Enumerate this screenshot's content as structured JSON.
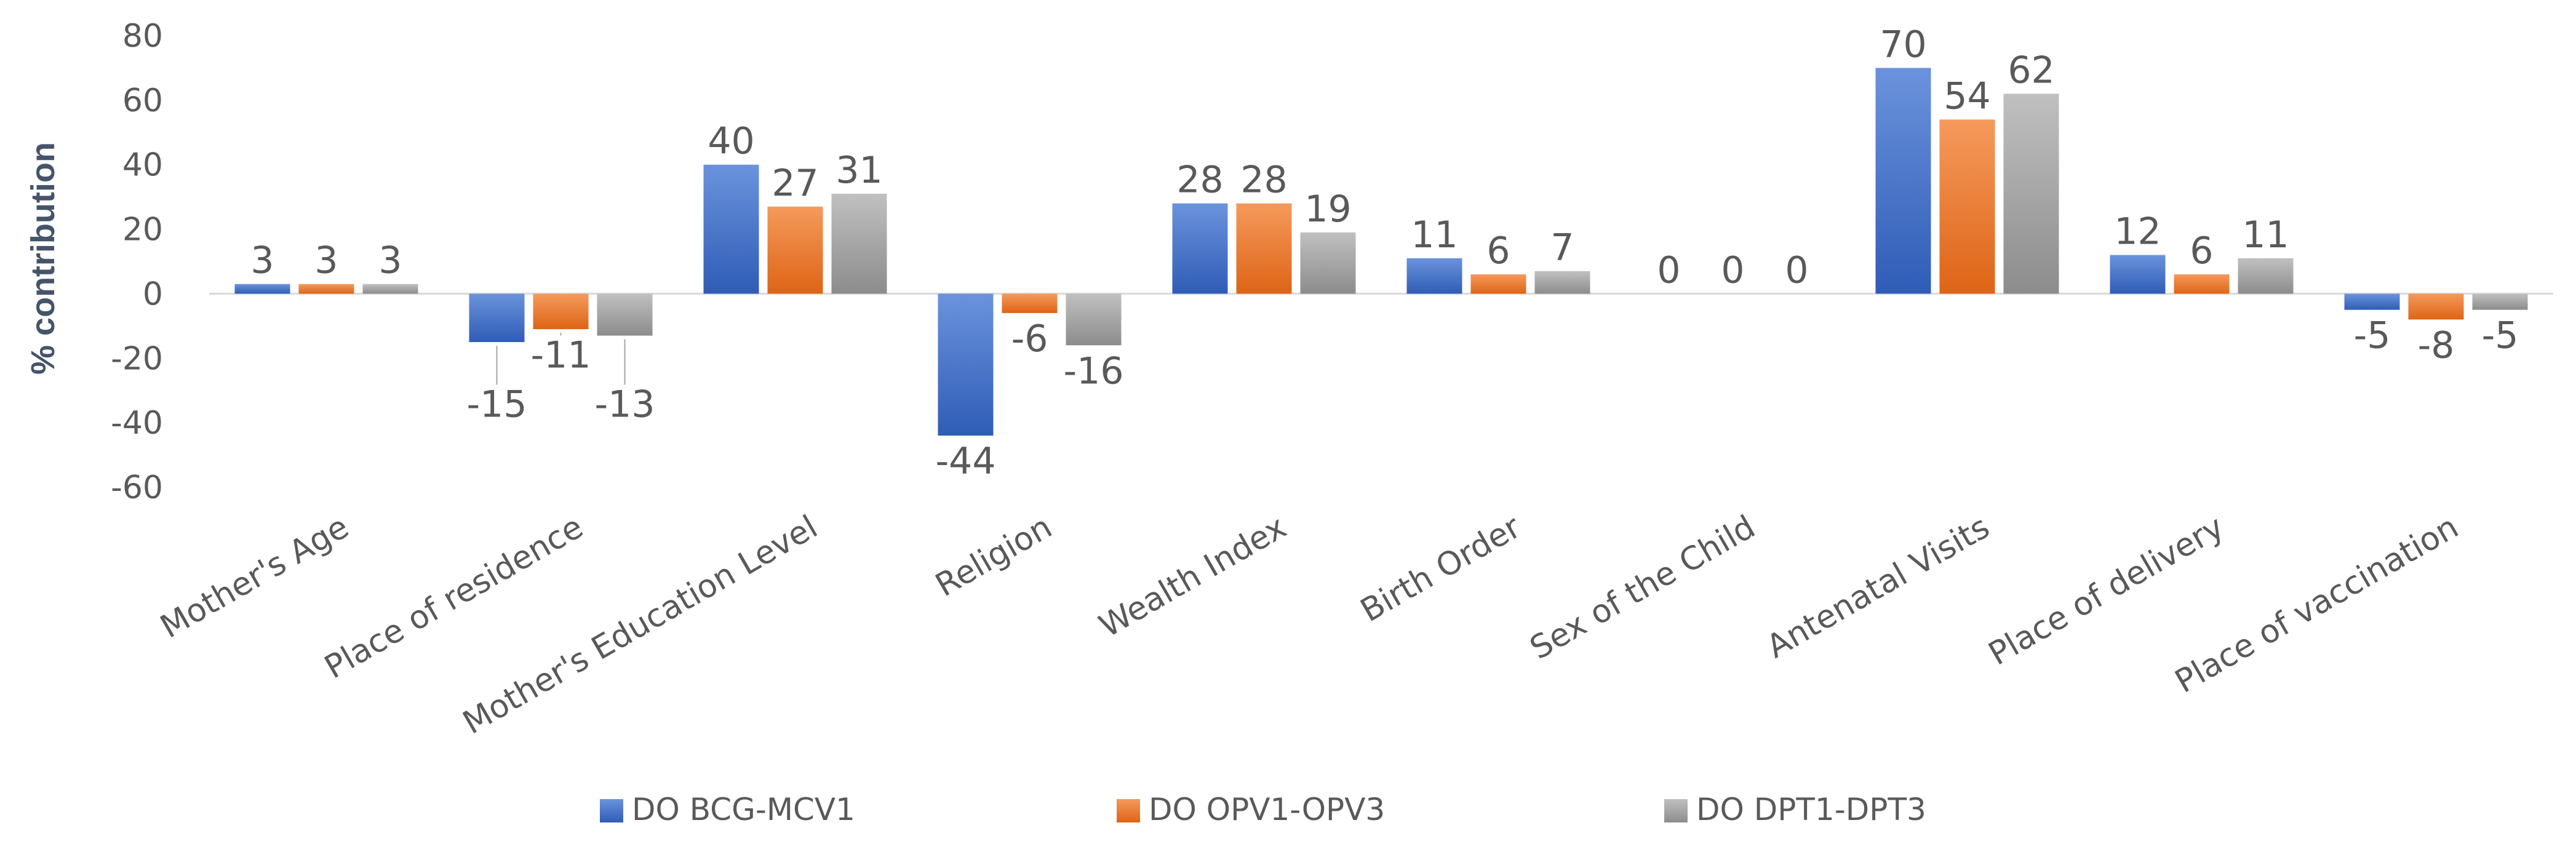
{
  "chart_data": {
    "type": "bar",
    "title": "",
    "xlabel": "",
    "ylabel": "% contribution",
    "ylim": [
      -60,
      80
    ],
    "yticks": [
      80,
      60,
      40,
      20,
      0,
      -20,
      -40,
      -60
    ],
    "grid": false,
    "legend_position": "bottom",
    "categories": [
      "Mother's Age",
      "Place of residence",
      "Mother's Education Level",
      "Religion",
      "Wealth Index",
      "Birth Order",
      "Sex of the Child",
      "Antenatal Visits",
      "Place of delivery",
      "Place of vaccination"
    ],
    "series": [
      {
        "name": "DO BCG-MCV1",
        "color": "#4472c4",
        "values": [
          3,
          -15,
          40,
          -44,
          28,
          11,
          0,
          70,
          12,
          -5
        ]
      },
      {
        "name": "DO OPV1-OPV3",
        "color": "#ed7d31",
        "values": [
          3,
          -11,
          27,
          -6,
          28,
          6,
          0,
          54,
          6,
          -8
        ]
      },
      {
        "name": "DO DPT1-DPT3",
        "color": "#a5a5a5",
        "values": [
          3,
          -13,
          31,
          -16,
          19,
          7,
          0,
          62,
          11,
          -5
        ]
      }
    ]
  }
}
